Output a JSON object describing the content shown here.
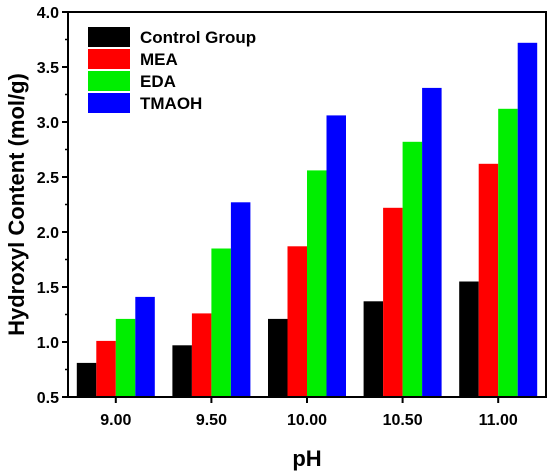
{
  "chart_data": {
    "type": "bar",
    "xlabel": "pH",
    "ylabel": "Hydroxyl Content (mol/g)",
    "categories": [
      "9.00",
      "9.50",
      "10.00",
      "10.50",
      "11.00"
    ],
    "ylim": [
      0.5,
      4.0
    ],
    "yticks": [
      "0.5",
      "1.0",
      "1.5",
      "2.0",
      "2.5",
      "3.0",
      "3.5",
      "4.0"
    ],
    "series": [
      {
        "name": "Control Group",
        "color": "#000000",
        "values": [
          0.81,
          0.97,
          1.21,
          1.37,
          1.55
        ]
      },
      {
        "name": "MEA",
        "color": "#ff0000",
        "values": [
          1.01,
          1.26,
          1.87,
          2.22,
          2.62
        ]
      },
      {
        "name": "EDA",
        "color": "#00ee00",
        "values": [
          1.21,
          1.85,
          2.56,
          2.82,
          3.12
        ]
      },
      {
        "name": "TMAOH",
        "color": "#0000ff",
        "values": [
          1.41,
          2.27,
          3.06,
          3.31,
          3.72
        ]
      }
    ],
    "legend_position": "top-left",
    "grid": false
  }
}
